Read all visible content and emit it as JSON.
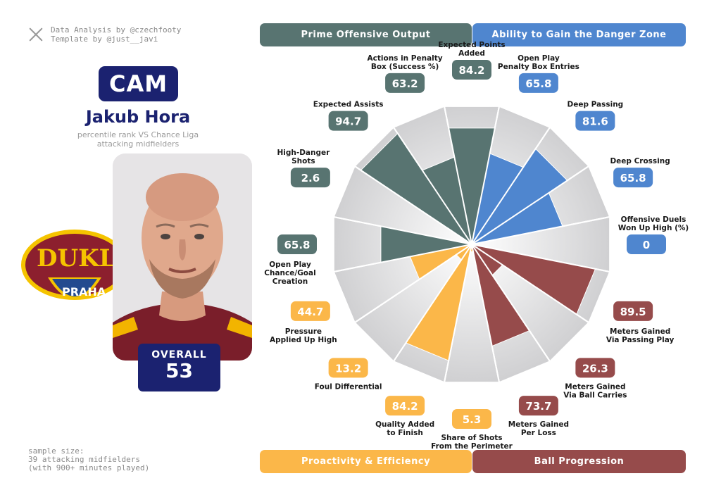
{
  "credits": {
    "line1": "Data Analysis by @czechfooty",
    "line2": "Template by @just__javi"
  },
  "player": {
    "position": "CAM",
    "name": "Jakub Hora",
    "subtitle_line1": "percentile rank VS Chance Liga",
    "subtitle_line2": "attacking midfielders",
    "overall_label": "OVERALL",
    "overall_value": "53"
  },
  "club_logo": {
    "text_main": "DUKL",
    "text_sub": "PRAHA"
  },
  "sample": {
    "line1": "sample size:",
    "line2": "39 attacking midfielders",
    "line3": "(with 900+ minutes played)"
  },
  "groups": [
    {
      "id": "prime",
      "label": "Prime Offensive Output",
      "color": "#587471"
    },
    {
      "id": "danger",
      "label": "Ability to Gain the Danger Zone",
      "color": "#4f86cf"
    },
    {
      "id": "proactivity",
      "label": "Proactivity & Efficiency",
      "color": "#fbb749"
    },
    {
      "id": "progression",
      "label": "Ball Progression",
      "color": "#964b4b"
    }
  ],
  "chart_data": {
    "type": "polar-bar",
    "range": [
      0,
      100
    ],
    "metrics": [
      {
        "label": [
          "Expected Points",
          "Added"
        ],
        "value": 84.2,
        "display": "84.2",
        "group": "prime"
      },
      {
        "label": [
          "Open Play",
          "Penalty Box Entries"
        ],
        "value": 65.8,
        "display": "65.8",
        "group": "danger"
      },
      {
        "label": [
          "Deep Passing"
        ],
        "value": 81.6,
        "display": "81.6",
        "group": "danger"
      },
      {
        "label": [
          "Deep Crossing"
        ],
        "value": 65.8,
        "display": "65.8",
        "group": "danger"
      },
      {
        "label": [
          "Offensive Duels",
          "Won Up High (%)"
        ],
        "value": 0,
        "display": "0",
        "group": "danger"
      },
      {
        "label": [
          "Meters Gained",
          "Via Passing Play"
        ],
        "value": 89.5,
        "display": "89.5",
        "group": "progression"
      },
      {
        "label": [
          "Meters Gained",
          "Via Ball Carries"
        ],
        "value": 26.3,
        "display": "26.3",
        "group": "progression"
      },
      {
        "label": [
          "Meters Gained",
          "Per Loss"
        ],
        "value": 73.7,
        "display": "73.7",
        "group": "progression"
      },
      {
        "label": [
          "Share of Shots",
          "From the Perimeter"
        ],
        "value": 5.3,
        "display": "5.3",
        "group": "proactivity"
      },
      {
        "label": [
          "Quality Added",
          "to Finish"
        ],
        "value": 84.2,
        "display": "84.2",
        "group": "proactivity"
      },
      {
        "label": [
          "Foul Differential"
        ],
        "value": 13.2,
        "display": "13.2",
        "group": "proactivity"
      },
      {
        "label": [
          "Pressure",
          "Applied Up High"
        ],
        "value": 44.7,
        "display": "44.7",
        "group": "proactivity"
      },
      {
        "label": [
          "Open Play",
          "Chance/Goal",
          "Creation"
        ],
        "value": 65.8,
        "display": "65.8",
        "group": "prime"
      },
      {
        "label": [
          "High-Danger",
          "Shots"
        ],
        "value": 2.6,
        "display": "2.6",
        "group": "prime"
      },
      {
        "label": [
          "Expected Assists"
        ],
        "value": 94.7,
        "display": "94.7",
        "group": "prime"
      },
      {
        "label": [
          "Actions in Penalty",
          "Box (Success %)"
        ],
        "value": 63.2,
        "display": "63.2",
        "group": "prime"
      }
    ]
  }
}
